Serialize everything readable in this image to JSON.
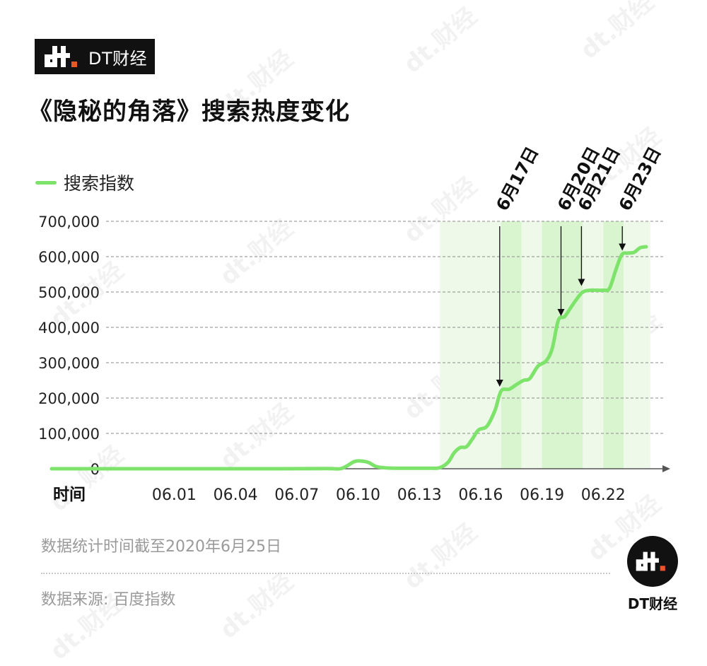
{
  "brand": {
    "name": "DT财经",
    "logo_icon": "dt-logo-icon"
  },
  "chart_data": {
    "type": "line",
    "title": "《隐秘的角落》搜索热度变化",
    "xlabel": "时间",
    "ylabel": "",
    "ylim": [
      0,
      700000
    ],
    "yticks": [
      0,
      100000,
      200000,
      300000,
      400000,
      500000,
      600000,
      700000
    ],
    "ytick_labels": [
      "0",
      "100,000",
      "200,000",
      "300,000",
      "400,000",
      "500,000",
      "600,000",
      "700,000"
    ],
    "x_tick_labels": [
      "06.01",
      "06.04",
      "06.07",
      "06.10",
      "06.13",
      "06.16",
      "06.19",
      "06.22"
    ],
    "grid": "horizontal-dashed",
    "legend": "top-left",
    "series": [
      {
        "name": "搜索指数",
        "color": "#7de36b",
        "points": [
          [
            -5,
            0
          ],
          [
            1,
            0
          ],
          [
            6,
            0
          ],
          [
            8.5,
            500
          ],
          [
            9.2,
            1000
          ],
          [
            9.8,
            20000
          ],
          [
            10.1,
            22000
          ],
          [
            10.5,
            18000
          ],
          [
            10.9,
            6000
          ],
          [
            11.5,
            2000
          ],
          [
            12.5,
            1500
          ],
          [
            13.5,
            1500
          ],
          [
            14,
            3000
          ],
          [
            14.4,
            18000
          ],
          [
            14.7,
            45000
          ],
          [
            15.0,
            60000
          ],
          [
            15.3,
            62000
          ],
          [
            15.6,
            85000
          ],
          [
            15.9,
            110000
          ],
          [
            16.3,
            120000
          ],
          [
            16.7,
            165000
          ],
          [
            17.0,
            220000
          ],
          [
            17.4,
            225000
          ],
          [
            17.8,
            240000
          ],
          [
            18.1,
            250000
          ],
          [
            18.4,
            255000
          ],
          [
            18.8,
            290000
          ],
          [
            19.2,
            305000
          ],
          [
            19.5,
            340000
          ],
          [
            19.8,
            420000
          ],
          [
            20.1,
            430000
          ],
          [
            20.4,
            455000
          ],
          [
            20.7,
            480000
          ],
          [
            21.0,
            500000
          ],
          [
            21.4,
            505000
          ],
          [
            22.0,
            505000
          ],
          [
            22.3,
            510000
          ],
          [
            22.6,
            560000
          ],
          [
            22.9,
            605000
          ],
          [
            23.2,
            610000
          ],
          [
            23.5,
            612000
          ],
          [
            23.8,
            625000
          ],
          [
            24.1,
            628000
          ]
        ]
      }
    ],
    "highlight_bands": [
      {
        "from": 14.0,
        "to": 17.0,
        "color": "#eef9ea"
      },
      {
        "from": 17.0,
        "to": 18.0,
        "color": "#d9f5cf"
      },
      {
        "from": 18.0,
        "to": 19.0,
        "color": "#eef9ea"
      },
      {
        "from": 19.0,
        "to": 21.0,
        "color": "#d9f5cf"
      },
      {
        "from": 21.0,
        "to": 22.0,
        "color": "#eef9ea"
      },
      {
        "from": 22.0,
        "to": 23.0,
        "color": "#d9f5cf"
      },
      {
        "from": 23.0,
        "to": 24.3,
        "color": "#eef9ea"
      }
    ],
    "annotations": [
      {
        "label": "6月17日",
        "x": 17.0,
        "arrow_to": 220000
      },
      {
        "label": "6月20日",
        "x": 20.0,
        "arrow_to": 420000
      },
      {
        "label": "6月21日",
        "x": 21.0,
        "arrow_to": 505000
      },
      {
        "label": "6月23日",
        "x": 23.0,
        "arrow_to": 605000
      }
    ]
  },
  "footer": {
    "note": "数据统计时间截至2020年6月25日",
    "source": "数据来源: 百度指数"
  },
  "watermark_text": "dt.财经"
}
